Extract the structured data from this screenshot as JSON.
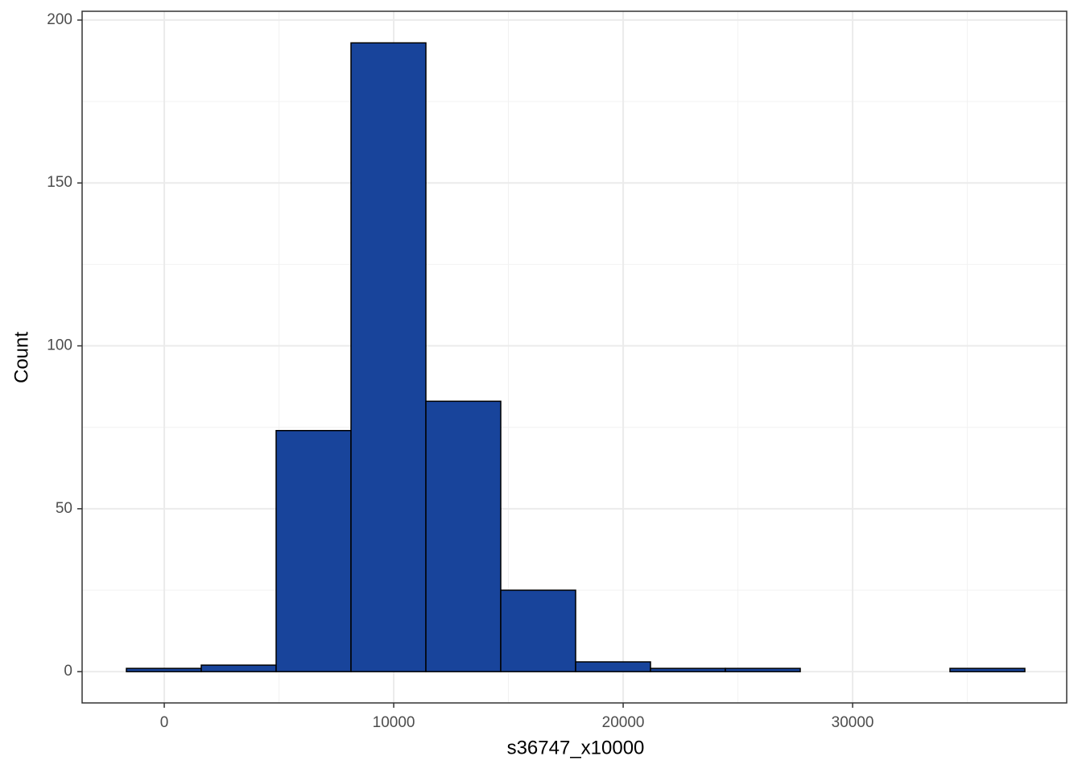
{
  "chart_data": {
    "type": "histogram",
    "x_label": "s36747_x10000",
    "y_label": "Count",
    "bins": [
      -1650,
      1613,
      4876,
      8139,
      11402,
      14665,
      17928,
      21191,
      24454,
      27717,
      30980,
      34243,
      37506
    ],
    "values": [
      1,
      2,
      74,
      193,
      83,
      25,
      3,
      1,
      1,
      0,
      0,
      1
    ],
    "color": "#18449b",
    "edge_color": "#000000",
    "xlim": [
      -3580,
      39330
    ],
    "ylim": [
      -9.6,
      202.7
    ],
    "xticks": [
      0,
      10000,
      20000,
      30000
    ],
    "yticks": [
      0,
      50,
      100,
      150,
      200
    ],
    "grid": true
  }
}
